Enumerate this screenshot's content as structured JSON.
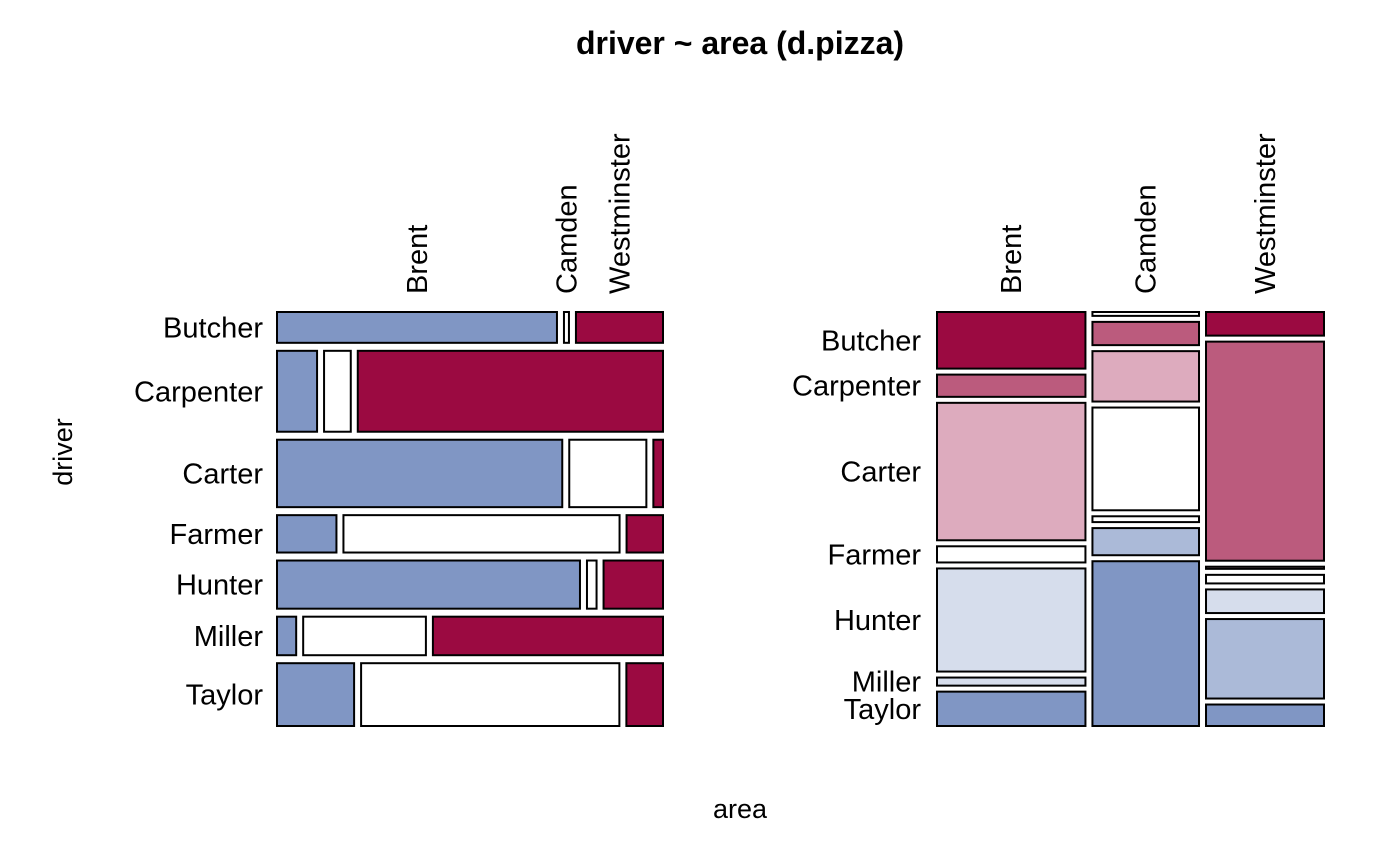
{
  "chart_data": [
    {
      "panel": "left",
      "type": "mosaic",
      "title": "driver ~ area (d.pizza)",
      "xlabel": "area",
      "ylabel": "driver",
      "column_labels": [
        "Brent",
        "Camden",
        "Westminster"
      ],
      "row_labels": [
        "Butcher",
        "Carpenter",
        "Carter",
        "Farmer",
        "Hunter",
        "Miller",
        "Taylor"
      ],
      "row_share": [
        0.08,
        0.21,
        0.175,
        0.097,
        0.125,
        0.1,
        0.163
      ],
      "cells": [
        [
          0.73,
          0.013,
          0.227
        ],
        [
          0.105,
          0.07,
          0.8
        ],
        [
          0.74,
          0.2,
          0.025
        ],
        [
          0.155,
          0.72,
          0.095
        ],
        [
          0.79,
          0.025,
          0.155
        ],
        [
          0.05,
          0.32,
          0.6
        ],
        [
          0.2,
          0.67,
          0.095
        ]
      ],
      "cell_fill": [
        [
          "#8096c4",
          "#ffffff",
          "#9b0a41"
        ],
        [
          "#8096c4",
          "#ffffff",
          "#9b0a41"
        ],
        [
          "#8096c4",
          "#ffffff",
          "#9b0a41"
        ],
        [
          "#8096c4",
          "#ffffff",
          "#9b0a41"
        ],
        [
          "#8096c4",
          "#ffffff",
          "#9b0a41"
        ],
        [
          "#8096c4",
          "#ffffff",
          "#9b0a41"
        ],
        [
          "#8096c4",
          "#ffffff",
          "#9b0a41"
        ]
      ]
    },
    {
      "panel": "right",
      "type": "mosaic",
      "column_labels": [
        "Brent",
        "Camden",
        "Westminster"
      ],
      "row_labels": [
        "Butcher",
        "Carpenter",
        "Carter",
        "Farmer",
        "Hunter",
        "Miller",
        "Taylor"
      ],
      "column_share": [
        0.39,
        0.28,
        0.31
      ],
      "cells": [
        [
          0.14,
          0.055,
          0.34,
          0.04,
          0.255,
          0.02,
          0.085
        ],
        [
          0.01,
          0.06,
          0.13,
          0.265,
          0.015,
          0.07,
          0.425
        ],
        [
          0.055,
          0.51,
          0.005,
          0.02,
          0.055,
          0.185,
          0.05
        ]
      ],
      "cell_fill": [
        [
          "#9b0a41",
          "#bb5b7d",
          "#ddabbe",
          "#ffffff",
          "#d6ddec",
          "#d6ddec",
          "#8096c4"
        ],
        [
          "#ffffff",
          "#bb5b7d",
          "#ddabbe",
          "#ffffff",
          "#ffffff",
          "#abbad8",
          "#8096c4"
        ],
        [
          "#9b0a41",
          "#bb5b7d",
          "#ddabbe",
          "#ffffff",
          "#d6ddec",
          "#abbad8",
          "#8096c4"
        ]
      ]
    }
  ]
}
